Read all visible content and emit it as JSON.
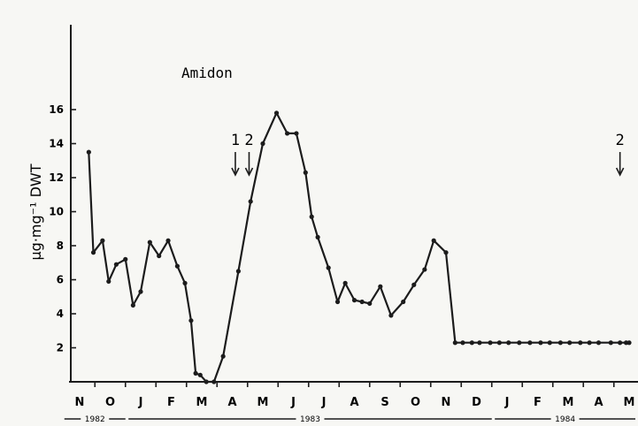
{
  "chart_data": {
    "type": "line",
    "title": "Amidon",
    "ylabel": "µg·mg⁻¹ DWT",
    "xlabel": "",
    "ylim": [
      0,
      16
    ],
    "y_ticks": [
      "2",
      "4",
      "6",
      "8",
      "10",
      "12",
      "14",
      "16"
    ],
    "month_labels": [
      "N",
      "O",
      "J",
      "F",
      "M",
      "A",
      "M",
      "J",
      "J",
      "A",
      "S",
      "O",
      "N",
      "D",
      "J",
      "F",
      "M",
      "A",
      "M"
    ],
    "years": [
      {
        "label": "1982"
      },
      {
        "label": "1983"
      },
      {
        "label": "1984"
      }
    ],
    "grid": false,
    "series": [
      {
        "x": [
          0.3,
          0.45,
          0.75,
          0.95,
          1.2,
          1.5,
          1.75,
          2.0,
          2.3,
          2.6,
          2.9,
          3.2,
          3.45,
          3.65,
          3.8,
          3.95,
          4.15,
          4.4,
          4.7,
          5.2,
          5.6,
          6.0,
          6.45,
          6.8,
          7.1,
          7.4,
          7.6,
          7.8,
          8.15,
          8.45,
          8.7,
          9.0,
          9.25,
          9.5,
          9.85,
          10.2,
          10.6,
          10.95,
          11.3,
          11.6,
          12.0,
          12.3,
          12.55,
          12.85,
          13.1,
          13.45,
          13.75,
          14.05,
          14.4,
          14.75,
          15.1,
          15.4,
          15.75,
          16.05,
          16.4,
          16.7,
          17.0,
          17.4,
          17.7,
          17.9,
          18.0
        ],
        "y": [
          13.5,
          7.6,
          8.3,
          5.9,
          6.9,
          7.2,
          4.5,
          5.3,
          8.2,
          7.4,
          8.3,
          6.8,
          5.8,
          3.6,
          0.5,
          0.4,
          0.0,
          0.0,
          1.5,
          6.5,
          10.6,
          14.0,
          15.8,
          14.6,
          14.6,
          12.3,
          9.7,
          8.5,
          6.7,
          4.7,
          5.8,
          4.8,
          4.7,
          4.6,
          5.6,
          3.9,
          4.7,
          5.7,
          6.6,
          8.3,
          7.6,
          2.3,
          2.3,
          2.3,
          2.3,
          2.3,
          2.3,
          2.3,
          2.3,
          2.3,
          2.3,
          2.3,
          2.3,
          2.3,
          2.3,
          2.3,
          2.3,
          2.3,
          2.3,
          2.3,
          2.3
        ]
      }
    ],
    "annotations": [
      {
        "text": "1",
        "x": 5.1
      },
      {
        "text": "2",
        "x": 5.55
      },
      {
        "text": "2",
        "x": 17.7
      }
    ]
  }
}
